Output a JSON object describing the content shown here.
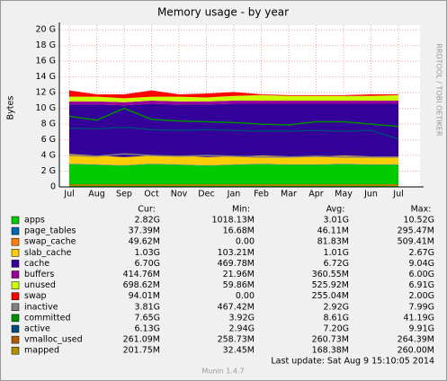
{
  "chart_data": {
    "type": "area",
    "title": "Memory usage - by year",
    "y_label": "Bytes",
    "side_text": "RRDTOOL / TOBI OETIKER",
    "categories": [
      "Jul",
      "Aug",
      "Sep",
      "Oct",
      "Nov",
      "Dec",
      "Jan",
      "Feb",
      "Mar",
      "Apr",
      "May",
      "Jun",
      "Jul"
    ],
    "ylim": [
      0,
      20.6
    ],
    "yticks": [
      {
        "value": 0,
        "label": "0"
      },
      {
        "value": 2,
        "label": "2 G"
      },
      {
        "value": 4,
        "label": "4 G"
      },
      {
        "value": 6,
        "label": "6 G"
      },
      {
        "value": 8,
        "label": "8 G"
      },
      {
        "value": 10,
        "label": "10 G"
      },
      {
        "value": 12,
        "label": "12 G"
      },
      {
        "value": 14,
        "label": "14 G"
      },
      {
        "value": 16,
        "label": "16 G"
      },
      {
        "value": 18,
        "label": "18 G"
      },
      {
        "value": 20,
        "label": "20 G"
      }
    ],
    "grid": true,
    "legend_headers": [
      "Cur:",
      "Min:",
      "Avg:",
      "Max:"
    ],
    "series": [
      {
        "name": "apps",
        "color": "#00cc00",
        "style": "area",
        "values": [
          2.9,
          2.8,
          2.7,
          2.9,
          2.8,
          2.7,
          2.8,
          2.9,
          2.8,
          2.8,
          2.9,
          2.8,
          2.8
        ],
        "cur": "2.82G",
        "min": "1018.13M",
        "avg": "3.01G",
        "max": "10.52G"
      },
      {
        "name": "page_tables",
        "color": "#0066b3",
        "style": "area",
        "values": [
          0.04,
          0.04,
          0.04,
          0.04,
          0.04,
          0.04,
          0.04,
          0.04,
          0.04,
          0.04,
          0.04,
          0.04,
          0.04
        ],
        "cur": "37.39M",
        "min": "16.68M",
        "avg": "46.11M",
        "max": "295.47M"
      },
      {
        "name": "swap_cache",
        "color": "#ff8000",
        "style": "area",
        "values": [
          0.05,
          0.05,
          0.05,
          0.05,
          0.05,
          0.05,
          0.05,
          0.05,
          0.05,
          0.05,
          0.05,
          0.05,
          0.05
        ],
        "cur": "49.62M",
        "min": "0.00",
        "avg": "81.83M",
        "max": "509.41M"
      },
      {
        "name": "slab_cache",
        "color": "#ffcc00",
        "style": "area",
        "values": [
          1.2,
          1.1,
          1.0,
          1.0,
          1.1,
          1.0,
          1.0,
          1.0,
          1.0,
          1.0,
          1.0,
          1.0,
          1.0
        ],
        "cur": "1.03G",
        "min": "103.21M",
        "avg": "1.01G",
        "max": "2.67G"
      },
      {
        "name": "cache",
        "color": "#330099",
        "style": "area",
        "values": [
          6.3,
          6.5,
          6.6,
          6.6,
          6.5,
          6.7,
          6.7,
          6.6,
          6.7,
          6.7,
          6.6,
          6.7,
          6.7
        ],
        "cur": "6.70G",
        "min": "469.78M",
        "avg": "6.72G",
        "max": "9.04G"
      },
      {
        "name": "buffers",
        "color": "#990099",
        "style": "area",
        "values": [
          0.4,
          0.4,
          0.4,
          0.4,
          0.4,
          0.4,
          0.4,
          0.4,
          0.4,
          0.4,
          0.4,
          0.4,
          0.4
        ],
        "cur": "414.76M",
        "min": "21.96M",
        "avg": "360.55M",
        "max": "6.00G"
      },
      {
        "name": "unused",
        "color": "#ccff00",
        "style": "area",
        "values": [
          0.6,
          0.6,
          0.5,
          0.5,
          0.6,
          0.5,
          0.6,
          0.7,
          0.6,
          0.6,
          0.6,
          0.6,
          0.7
        ],
        "cur": "698.62M",
        "min": "59.86M",
        "avg": "525.92M",
        "max": "6.91G"
      },
      {
        "name": "swap",
        "color": "#ff0000",
        "style": "area",
        "values": [
          0.8,
          0.3,
          0.5,
          0.8,
          0.3,
          0.5,
          0.5,
          0.1,
          0.1,
          0.1,
          0.1,
          0.2,
          0.1
        ],
        "cur": "94.01M",
        "min": "0.00",
        "avg": "255.04M",
        "max": "2.00G"
      },
      {
        "name": "inactive",
        "color": "#808080",
        "style": "line",
        "values": [
          4.0,
          3.9,
          4.2,
          4.0,
          3.9,
          4.0,
          3.9,
          3.8,
          3.8,
          3.9,
          3.8,
          3.8,
          3.8
        ],
        "cur": "3.81G",
        "min": "467.42M",
        "avg": "2.92G",
        "max": "7.99G"
      },
      {
        "name": "committed",
        "color": "#008f00",
        "style": "line",
        "values": [
          9.0,
          8.5,
          10.0,
          8.6,
          8.4,
          8.3,
          8.2,
          8.0,
          7.9,
          8.3,
          8.3,
          8.0,
          7.7
        ],
        "cur": "7.65G",
        "min": "3.92G",
        "avg": "8.61G",
        "max": "41.19G"
      },
      {
        "name": "active",
        "color": "#00487d",
        "style": "line",
        "values": [
          7.5,
          7.4,
          7.6,
          7.3,
          7.2,
          7.3,
          7.2,
          7.1,
          7.1,
          7.2,
          7.1,
          7.2,
          6.1
        ],
        "cur": "6.13G",
        "min": "2.94G",
        "avg": "7.20G",
        "max": "9.91G"
      },
      {
        "name": "vmalloc_used",
        "color": "#b35a00",
        "style": "line",
        "values": [
          0.26,
          0.26,
          0.26,
          0.26,
          0.26,
          0.26,
          0.26,
          0.26,
          0.26,
          0.26,
          0.26,
          0.26,
          0.26
        ],
        "cur": "261.09M",
        "min": "258.73M",
        "avg": "260.73M",
        "max": "264.39M"
      },
      {
        "name": "mapped",
        "color": "#b38f00",
        "style": "line",
        "values": [
          0.2,
          0.2,
          0.2,
          0.2,
          0.2,
          0.2,
          0.2,
          0.2,
          0.2,
          0.2,
          0.2,
          0.2,
          0.2
        ],
        "cur": "201.75M",
        "min": "32.45M",
        "avg": "168.38M",
        "max": "260.00M"
      }
    ],
    "last_update": "Last update: Sat Aug  9 15:10:05 2014",
    "footer": "Munin 1.4.7"
  }
}
